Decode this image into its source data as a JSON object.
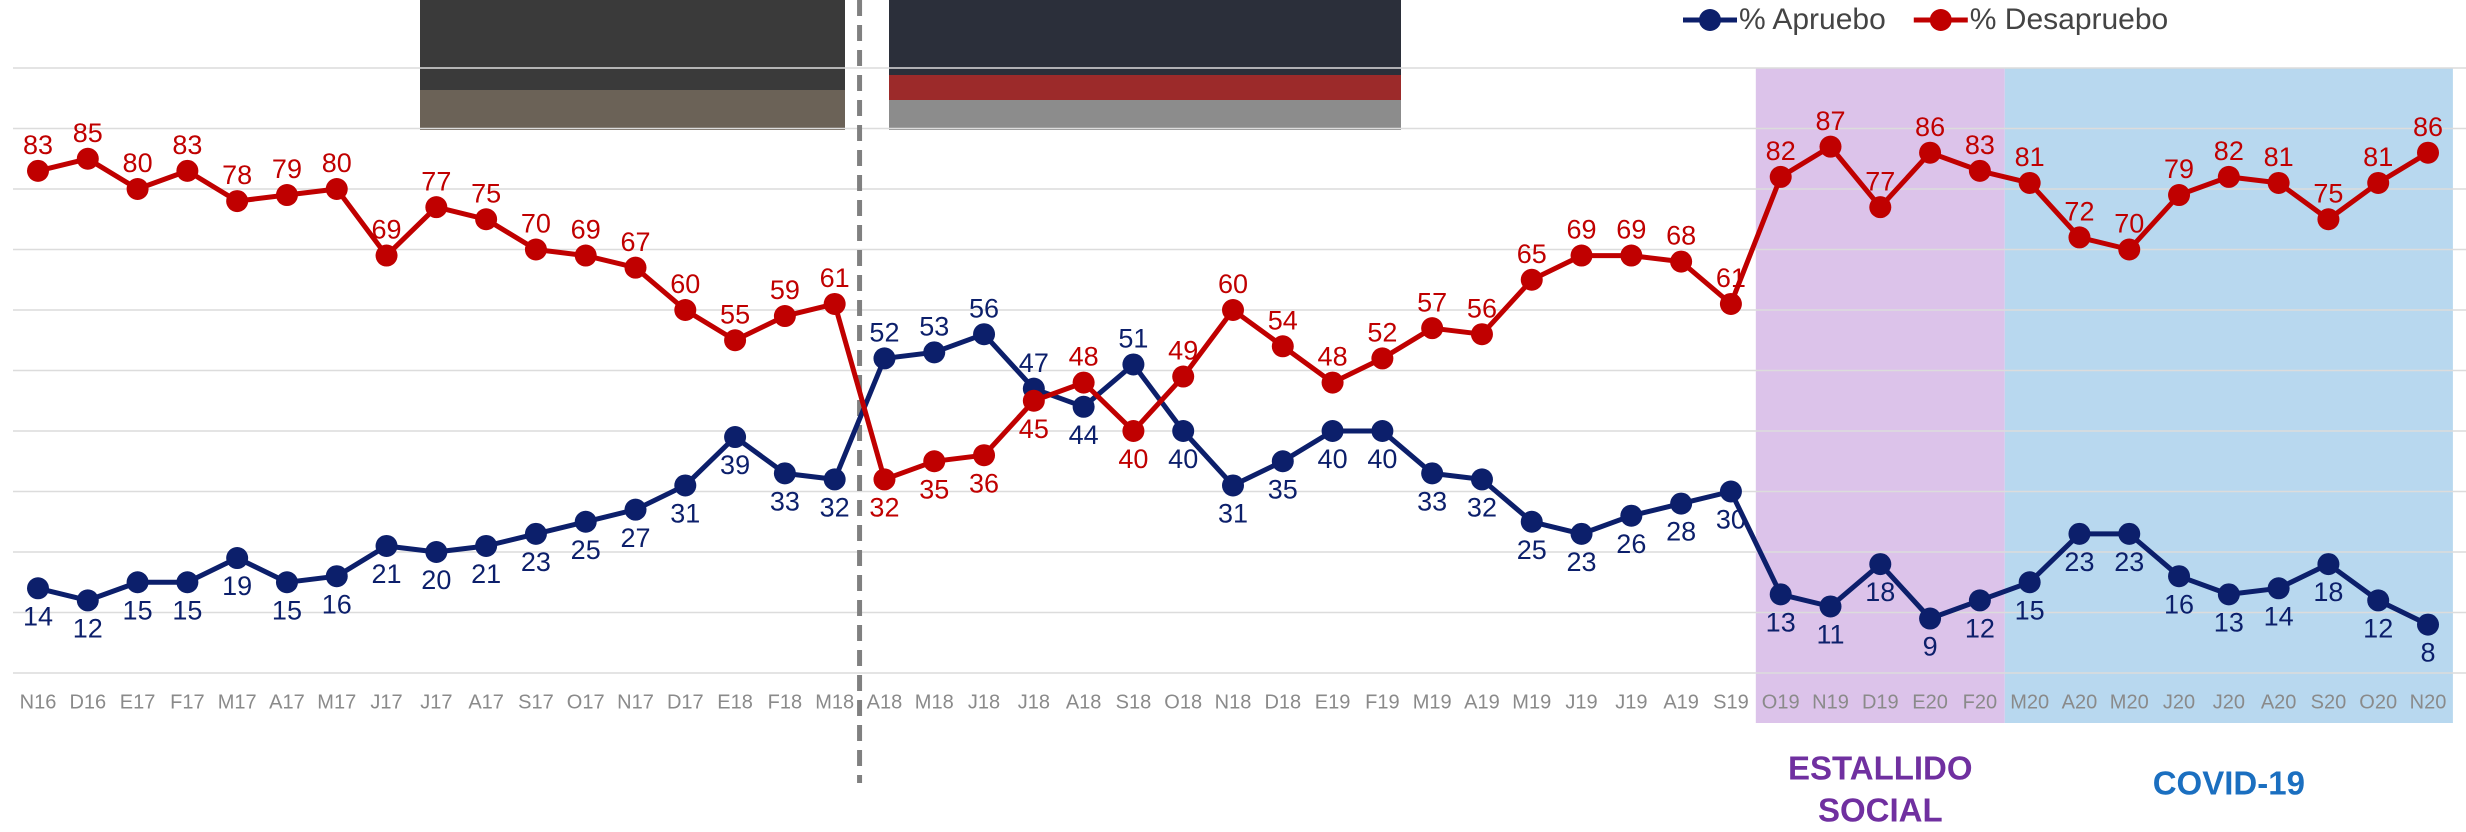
{
  "chart_data": {
    "type": "line",
    "categories": [
      "N16",
      "D16",
      "E17",
      "F17",
      "M17",
      "A17",
      "M17",
      "J17",
      "J17",
      "A17",
      "S17",
      "O17",
      "N17",
      "D17",
      "E18",
      "F18",
      "M18",
      "A18",
      "M18",
      "J18",
      "J18",
      "A18",
      "S18",
      "O18",
      "N18",
      "D18",
      "E19",
      "F19",
      "M19",
      "A19",
      "M19",
      "J19",
      "J19",
      "A19",
      "S19",
      "O19",
      "N19",
      "D19",
      "E20",
      "F20",
      "M20",
      "A20",
      "M20",
      "J20",
      "J20",
      "A20",
      "S20",
      "O20",
      "N20"
    ],
    "series": [
      {
        "name": "% Apruebo",
        "color": "#0c1f6b",
        "values": [
          14,
          12,
          15,
          15,
          19,
          15,
          16,
          21,
          20,
          21,
          23,
          25,
          27,
          31,
          39,
          33,
          32,
          52,
          53,
          56,
          47,
          44,
          51,
          40,
          31,
          35,
          40,
          40,
          33,
          32,
          25,
          23,
          26,
          28,
          30,
          13,
          11,
          18,
          9,
          12,
          15,
          23,
          23,
          16,
          13,
          14,
          18,
          12,
          8
        ]
      },
      {
        "name": "% Desapruebo",
        "color": "#c00000",
        "values": [
          83,
          85,
          80,
          83,
          78,
          79,
          80,
          69,
          77,
          75,
          70,
          69,
          67,
          60,
          55,
          59,
          61,
          32,
          35,
          36,
          45,
          48,
          40,
          49,
          60,
          54,
          48,
          52,
          57,
          56,
          65,
          69,
          69,
          68,
          61,
          82,
          87,
          77,
          86,
          83,
          81,
          72,
          70,
          79,
          82,
          81,
          75,
          81,
          86
        ]
      }
    ],
    "ylim": [
      0,
      100
    ],
    "yticks": [
      0,
      10,
      20,
      30,
      40,
      50,
      60,
      70,
      80,
      90,
      100
    ],
    "grid": true,
    "ytick_labels": false,
    "legend": "top-right",
    "divider_after": "M18",
    "regions": [
      {
        "lines": [
          "ESTALLIDO",
          "SOCIAL"
        ],
        "from": "O19",
        "to": "F20",
        "color": "#dcc3ea",
        "text_color": "#7030a0"
      },
      {
        "lines": [
          "COVID-19"
        ],
        "from": "M20",
        "to": "N20",
        "color": "#b8d8ef",
        "text_color": "#1b6fc0"
      }
    ]
  }
}
